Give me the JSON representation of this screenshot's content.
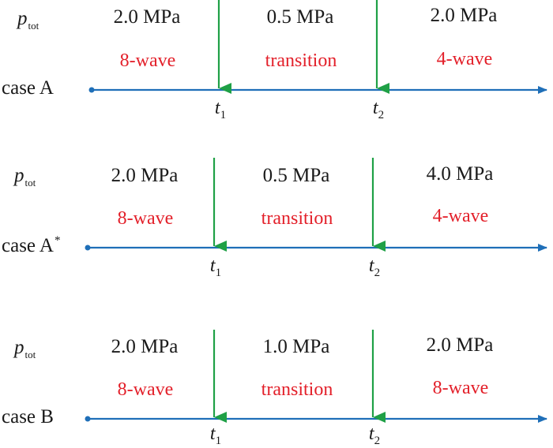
{
  "colors": {
    "axis": "#1f6fb8",
    "arrow": "#1fa046",
    "mode_text": "#e3202a",
    "text": "#1a1a1a"
  },
  "cases": [
    {
      "ptot_symbol": "p",
      "ptot_subscript": "tot",
      "case_label": "case A",
      "case_superscript": "",
      "pressures": [
        "2.0 MPa",
        "0.5 MPa",
        "2.0 MPa"
      ],
      "modes": [
        "8-wave",
        "transition",
        "4-wave"
      ],
      "times": [
        {
          "symbol": "t",
          "subscript": "1"
        },
        {
          "symbol": "t",
          "subscript": "2"
        }
      ]
    },
    {
      "ptot_symbol": "p",
      "ptot_subscript": "tot",
      "case_label": "case A",
      "case_superscript": "*",
      "pressures": [
        "2.0 MPa",
        "0.5 MPa",
        "4.0 MPa"
      ],
      "modes": [
        "8-wave",
        "transition",
        "4-wave"
      ],
      "times": [
        {
          "symbol": "t",
          "subscript": "1"
        },
        {
          "symbol": "t",
          "subscript": "2"
        }
      ]
    },
    {
      "ptot_symbol": "p",
      "ptot_subscript": "tot",
      "case_label": "case B",
      "case_superscript": "",
      "pressures": [
        "2.0 MPa",
        "1.0 MPa",
        "2.0 MPa"
      ],
      "modes": [
        "8-wave",
        "transition",
        "8-wave"
      ],
      "times": [
        {
          "symbol": "t",
          "subscript": "1"
        },
        {
          "symbol": "t",
          "subscript": "2"
        }
      ]
    }
  ]
}
